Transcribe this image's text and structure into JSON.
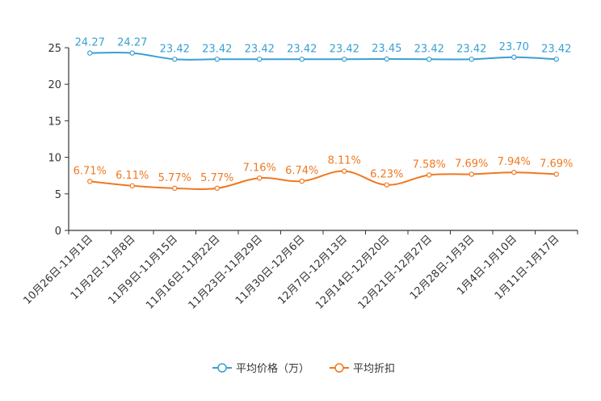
{
  "chart_data": {
    "type": "line",
    "categories": [
      "10月26日-11月1日",
      "11月2日-11月8日",
      "11月9日-11月15日",
      "11月16日-11月22日",
      "11月23日-11月29日",
      "11月30日-12月6日",
      "12月7日-12月13日",
      "12月14日-12月20日",
      "12月21日-12月27日",
      "12月28日-1月3日",
      "1月4日-1月10日",
      "1月11日-1月17日"
    ],
    "yticks": [
      "0",
      "5",
      "10",
      "15",
      "20",
      "25"
    ],
    "ylim": [
      0,
      25
    ],
    "series": [
      {
        "name": "平均价格（万）",
        "color": "#3a9fd2",
        "values": [
          24.27,
          24.27,
          23.42,
          23.42,
          23.42,
          23.42,
          23.42,
          23.45,
          23.42,
          23.42,
          23.7,
          23.42
        ],
        "labels": [
          "24.27",
          "24.27",
          "23.42",
          "23.42",
          "23.42",
          "23.42",
          "23.42",
          "23.45",
          "23.42",
          "23.42",
          "23.70",
          "23.42"
        ]
      },
      {
        "name": "平均折扣",
        "color": "#f07820",
        "values": [
          6.71,
          6.11,
          5.77,
          5.77,
          7.16,
          6.74,
          8.11,
          6.23,
          7.58,
          7.69,
          7.94,
          7.69
        ],
        "labels": [
          "6.71%",
          "6.11%",
          "5.77%",
          "5.77%",
          "7.16%",
          "6.74%",
          "8.11%",
          "6.23%",
          "7.58%",
          "7.69%",
          "7.94%",
          "7.69%"
        ]
      }
    ],
    "legend_position": "bottom-center"
  }
}
